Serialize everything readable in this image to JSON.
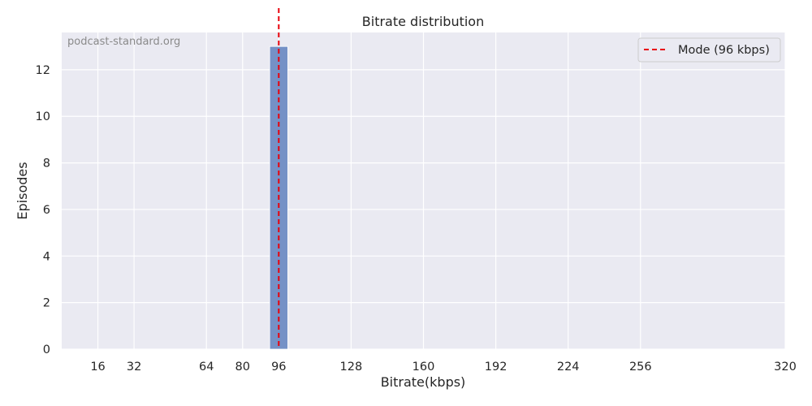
{
  "chart_data": {
    "type": "bar",
    "title": "Bitrate distribution",
    "xlabel": "Bitrate(kbps)",
    "ylabel": "Episodes",
    "xlim": [
      0,
      320
    ],
    "ylim": [
      0,
      13.6
    ],
    "xticks": [
      16,
      32,
      64,
      80,
      96,
      128,
      160,
      192,
      224,
      256,
      320
    ],
    "yticks": [
      0,
      2,
      4,
      6,
      8,
      10,
      12
    ],
    "bin_width": 8,
    "bars": [
      {
        "x_start": 92,
        "x_end": 100,
        "value": 13
      }
    ],
    "mode_line": {
      "x": 96,
      "label": "Mode (96 kbps)",
      "color": "#e8000b",
      "style": "dashed"
    },
    "bar_color": "#7591c6",
    "background": "#eaeaf2",
    "grid": true,
    "legend_position": "top-right",
    "watermark": "podcast-standard.org"
  }
}
